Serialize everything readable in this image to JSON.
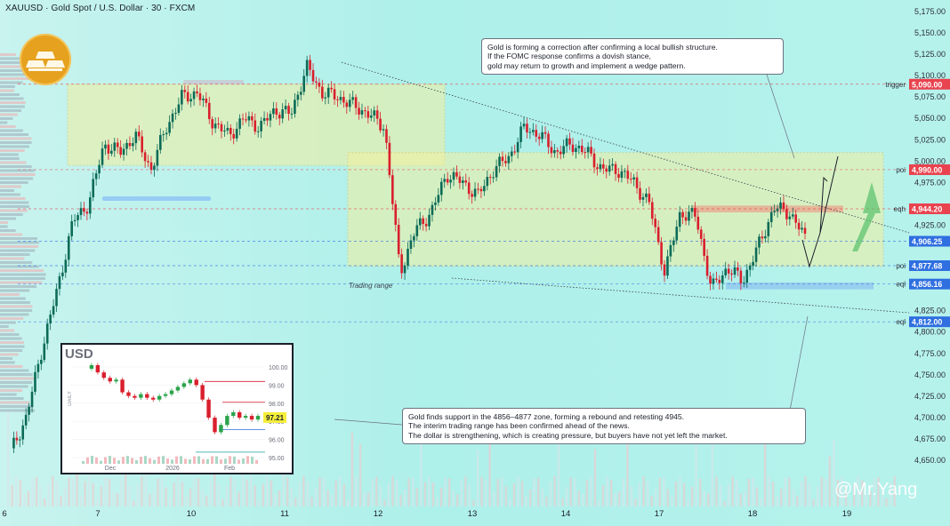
{
  "header": {
    "title": "XAUUSD · Gold Spot / U.S. Dollar · 30 · FXCM"
  },
  "watermark": "@Mr.Yang",
  "annotations": {
    "top": [
      "Gold is forming a correction after confirming a local bullish structure.",
      "If the FOMC response confirms a dovish stance,",
      "gold may return to growth and implement a wedge pattern."
    ],
    "bottom": [
      "Gold finds support in the 4856–4877 zone, forming a rebound and retesting 4945.",
      "The interim trading range has been confirmed ahead of the news.",
      "The dollar is strengthening, which is creating pressure, but buyers have not yet left the market."
    ],
    "trading_range_label": "Trading range"
  },
  "colors": {
    "accent_red": "#e8434e",
    "accent_blue": "#2f6fe0",
    "green_zone": "#f0ef9a",
    "candle_up": "#0b6b57",
    "candle_down": "#d91f2d"
  },
  "chart_data": [
    {
      "type": "candlestick",
      "title": "XAUUSD · Gold Spot / U.S. Dollar · 30 · FXCM",
      "x_ticks": [
        "6",
        "7",
        "10",
        "11",
        "12",
        "13",
        "14",
        "17",
        "18",
        "19"
      ],
      "y_ticks": [
        4650,
        4675,
        4700,
        4725,
        4750,
        4775,
        4800,
        4825,
        4850,
        4875,
        4900,
        4925,
        4950,
        4975,
        5000,
        5025,
        5050,
        5075,
        5100,
        5125,
        5150,
        5175
      ],
      "ylim": [
        4640,
        5180
      ],
      "price_path": [
        4660,
        4700,
        4780,
        4850,
        4930,
        4950,
        5020,
        5010,
        5030,
        4990,
        5040,
        5075,
        5080,
        5045,
        5030,
        5050,
        5040,
        5060,
        5055,
        5110,
        5080,
        5075,
        5065,
        5055,
        5040,
        4870,
        4920,
        4940,
        4985,
        4975,
        4960,
        4990,
        5005,
        5040,
        5030,
        5010,
        5020,
        5010,
        4990,
        4990,
        4975,
        4950,
        4870,
        4940,
        4935,
        4850,
        4875,
        4860,
        4900,
        4945,
        4940,
        4910
      ],
      "levels": [
        {
          "label": "trigger",
          "value": 5090.0,
          "tag": "5,090.00",
          "color": "#e8434e"
        },
        {
          "label": "poi",
          "value": 4990.0,
          "tag": "4,990.00",
          "color": "#e8434e"
        },
        {
          "label": "eqh",
          "value": 4944.2,
          "tag": "4,944.20",
          "color": "#e8434e"
        },
        {
          "label": "",
          "value": 4906.25,
          "tag": "4,906.25",
          "color": "#2f6fe0"
        },
        {
          "label": "poi",
          "value": 4877.68,
          "tag": "4,877.68",
          "color": "#2f6fe0"
        },
        {
          "label": "eql",
          "value": 4856.16,
          "tag": "4,856.16",
          "color": "#2f6fe0"
        },
        {
          "label": "eql",
          "value": 4812.0,
          "tag": "4,812.00",
          "color": "#2f6fe0"
        }
      ],
      "zones": [
        {
          "name": "upper-range",
          "from": 4995,
          "to": 5090
        },
        {
          "name": "Trading range",
          "from": 4877,
          "to": 5010
        }
      ]
    },
    {
      "type": "candlestick",
      "title": "USD",
      "side_label": "DAILY",
      "x_ticks": [
        "Dec",
        "2026",
        "Feb"
      ],
      "y_ticks": [
        95.0,
        96.0,
        97.0,
        98.0,
        99.0,
        100.0
      ],
      "ylim": [
        94.8,
        100.4
      ],
      "current_value": "97.21",
      "price_path": [
        99.9,
        100.1,
        99.7,
        99.4,
        99.2,
        99.3,
        98.6,
        98.4,
        98.3,
        98.5,
        98.3,
        98.2,
        98.4,
        98.5,
        98.7,
        98.9,
        99.1,
        99.3,
        99.0,
        98.2,
        97.2,
        96.4,
        96.8,
        97.3,
        97.5,
        97.2,
        97.3,
        97.1,
        97.3
      ]
    }
  ]
}
